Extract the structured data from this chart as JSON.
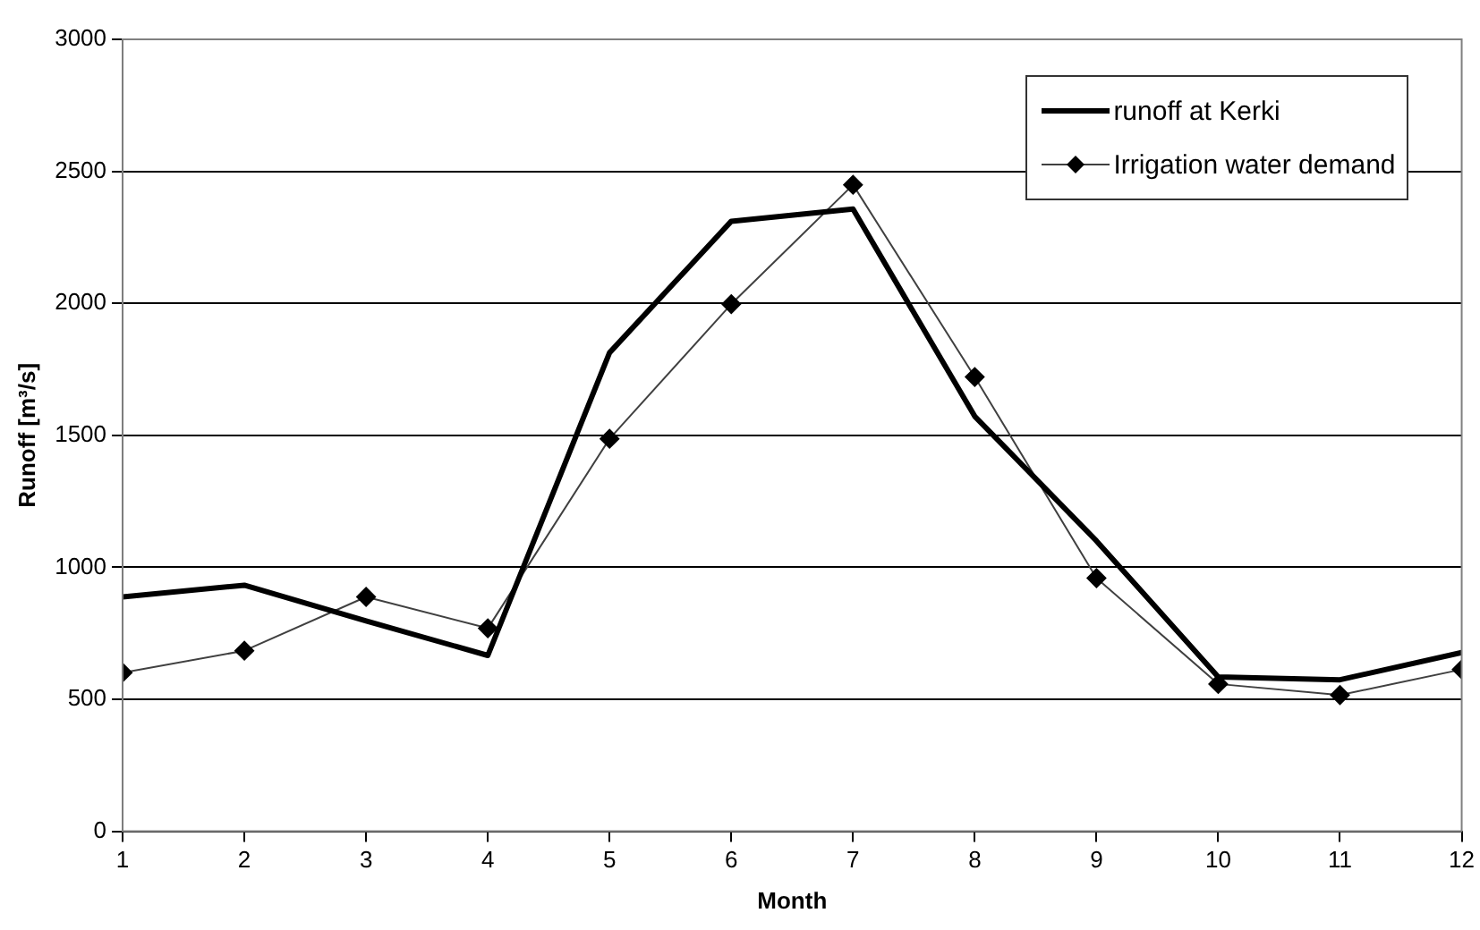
{
  "chart_data": {
    "type": "line",
    "xlabel": "Month",
    "ylabel": "Runoff [m³/s]",
    "x": [
      1,
      2,
      3,
      4,
      5,
      6,
      7,
      8,
      9,
      10,
      11,
      12
    ],
    "xlim": [
      1,
      12
    ],
    "xticks": [
      1,
      2,
      3,
      4,
      5,
      6,
      7,
      8,
      9,
      10,
      11,
      12
    ],
    "ylim": [
      0,
      3000
    ],
    "yticks": [
      0,
      500,
      1000,
      1500,
      2000,
      2500,
      3000
    ],
    "grid": "y",
    "legend": "top right",
    "line_style": "solid",
    "series": [
      {
        "name": "runoff at Kerki",
        "color": "#000000",
        "marker": "none",
        "values": [
          888,
          932,
          797,
          666,
          1813,
          2311,
          2357,
          1572,
          1100,
          585,
          574,
          677
        ]
      },
      {
        "name": "Irrigation water demand",
        "color": "#404040",
        "marker": "diamond",
        "values": [
          601,
          684,
          888,
          769,
          1487,
          1997,
          2449,
          1721,
          959,
          558,
          516,
          613
        ]
      }
    ]
  }
}
